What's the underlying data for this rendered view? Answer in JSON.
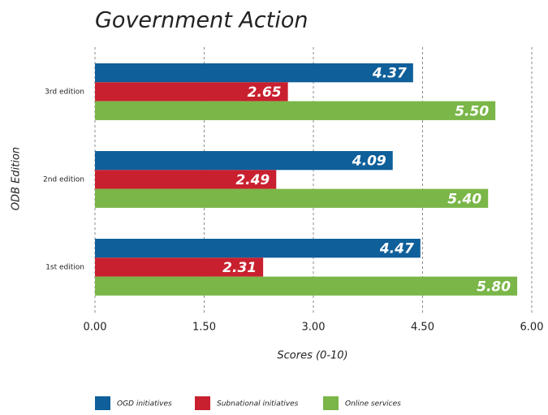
{
  "chart_data": {
    "type": "bar",
    "orientation": "horizontal",
    "title": "Government Action",
    "x_label": "Scores (0-10)",
    "y_label": "ODB Edition",
    "categories": [
      "3rd edition",
      "2nd edition",
      "1st edition"
    ],
    "series": [
      {
        "name": "OGD initiatives",
        "color": "#0f5f9a",
        "values": [
          4.37,
          4.09,
          4.47
        ],
        "value_labels": [
          "4.37",
          "4.09",
          "4.47"
        ]
      },
      {
        "name": "Subnational initiatives",
        "color": "#c8202f",
        "values": [
          2.65,
          2.49,
          2.31
        ],
        "value_labels": [
          "2.65",
          "2.49",
          "2.31"
        ]
      },
      {
        "name": "Online services",
        "color": "#7ab648",
        "values": [
          5.5,
          5.4,
          5.8
        ],
        "value_labels": [
          "5.50",
          "5.40",
          "5.80"
        ]
      }
    ],
    "xlim": [
      0,
      6
    ],
    "xticks": [
      {
        "value": 0,
        "label": "0.00"
      },
      {
        "value": 1.5,
        "label": "1.50"
      },
      {
        "value": 3,
        "label": "3.00"
      },
      {
        "value": 4.5,
        "label": "4.50"
      },
      {
        "value": 6,
        "label": "6.00"
      }
    ],
    "grid": true,
    "legend": "bottom"
  }
}
